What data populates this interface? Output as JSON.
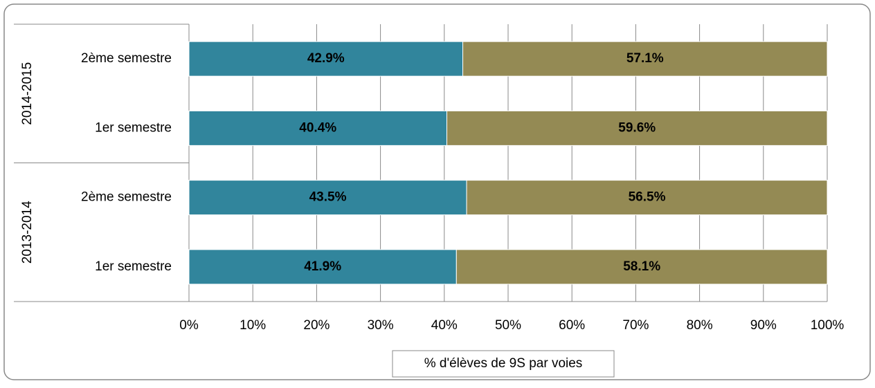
{
  "chart_data": {
    "type": "stacked-bar-horizontal",
    "groups": [
      {
        "name": "2014-2015",
        "categories": [
          "2ème semestre",
          "1er semestre"
        ]
      },
      {
        "name": "2013-2014",
        "categories": [
          "2ème semestre",
          "1er semestre"
        ]
      }
    ],
    "series": [
      {
        "color": "#31859c",
        "values": [
          42.9,
          40.4,
          43.5,
          41.9
        ],
        "value_labels": [
          "42.9%",
          "40.4%",
          "43.5%",
          "41.9%"
        ]
      },
      {
        "color": "#948a54",
        "values": [
          57.1,
          59.6,
          56.5,
          58.1
        ],
        "value_labels": [
          "57.1%",
          "59.6%",
          "56.5%",
          "58.1%"
        ]
      }
    ],
    "xlabel": "% d'élèves de 9S par voies",
    "xlim": [
      0,
      100
    ],
    "xticks": [
      {
        "value": 0,
        "label": "0%"
      },
      {
        "value": 10,
        "label": "10%"
      },
      {
        "value": 20,
        "label": "20%"
      },
      {
        "value": 30,
        "label": "30%"
      },
      {
        "value": 40,
        "label": "40%"
      },
      {
        "value": 50,
        "label": "50%"
      },
      {
        "value": 60,
        "label": "60%"
      },
      {
        "value": 70,
        "label": "70%"
      },
      {
        "value": 80,
        "label": "80%"
      },
      {
        "value": 90,
        "label": "90%"
      },
      {
        "value": 100,
        "label": "100%"
      }
    ],
    "grid": true
  }
}
